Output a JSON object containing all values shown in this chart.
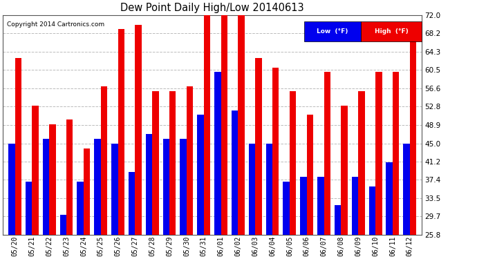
{
  "title": "Dew Point Daily High/Low 20140613",
  "copyright": "Copyright 2014 Cartronics.com",
  "categories": [
    "05/20",
    "05/21",
    "05/22",
    "05/23",
    "05/24",
    "05/25",
    "05/26",
    "05/27",
    "05/28",
    "05/29",
    "05/30",
    "05/31",
    "06/01",
    "06/02",
    "06/03",
    "06/04",
    "06/05",
    "06/06",
    "06/07",
    "06/08",
    "06/09",
    "06/10",
    "06/11",
    "06/12"
  ],
  "low_values": [
    45,
    37,
    46,
    30,
    37,
    46,
    45,
    39,
    47,
    46,
    46,
    51,
    60,
    52,
    45,
    45,
    37,
    38,
    38,
    32,
    38,
    36,
    41,
    45
  ],
  "high_values": [
    63,
    53,
    49,
    50,
    44,
    57,
    69,
    70,
    56,
    56,
    57,
    72,
    73,
    72,
    63,
    61,
    56,
    51,
    60,
    53,
    56,
    60,
    60,
    68
  ],
  "ylim_min": 25.8,
  "ylim_max": 72.0,
  "yticks": [
    25.8,
    29.7,
    33.5,
    37.4,
    41.2,
    45.0,
    48.9,
    52.8,
    56.6,
    60.5,
    64.3,
    68.2,
    72.0
  ],
  "bar_width": 0.38,
  "low_color": "#0000ee",
  "high_color": "#ee0000",
  "bg_color": "#ffffff",
  "grid_color": "#bbbbbb",
  "outer_bg": "#ffffff"
}
